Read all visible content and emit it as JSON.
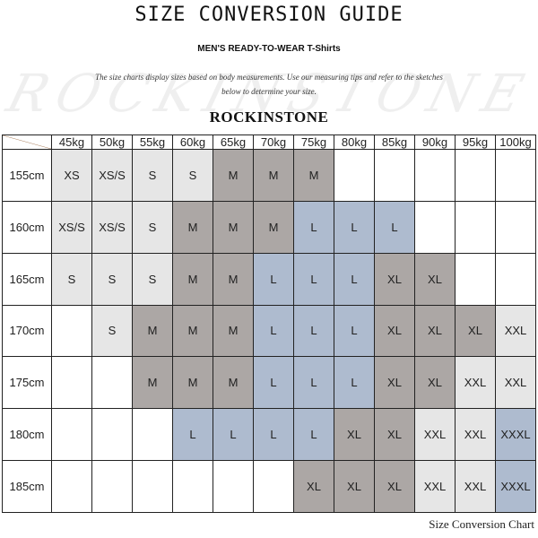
{
  "header": {
    "title": "SIZE CONVERSION GUIDE",
    "subtitle": "MEN'S READY-TO-WEAR T-Shirts",
    "description_line1": "The size charts display sizes based on body measurements.  Use our measuring tips and refer to the sketches",
    "description_line2": "below to determine your size.",
    "watermark": "ROCKINSTONE",
    "brand": "ROCKINSTONE"
  },
  "table": {
    "columns": [
      "45kg",
      "50kg",
      "55kg",
      "60kg",
      "65kg",
      "70kg",
      "75kg",
      "80kg",
      "85kg",
      "90kg",
      "95kg",
      "100kg"
    ],
    "rows": [
      {
        "height": "155cm",
        "sizes": [
          "XS",
          "XS/S",
          "S",
          "S",
          "M",
          "M",
          "M",
          "",
          "",
          "",
          "",
          ""
        ]
      },
      {
        "height": "160cm",
        "sizes": [
          "XS/S",
          "XS/S",
          "S",
          "M",
          "M",
          "M",
          "L",
          "L",
          "L",
          "",
          "",
          ""
        ]
      },
      {
        "height": "165cm",
        "sizes": [
          "S",
          "S",
          "S",
          "M",
          "M",
          "L",
          "L",
          "L",
          "XL",
          "XL",
          "",
          ""
        ]
      },
      {
        "height": "170cm",
        "sizes": [
          "",
          "S",
          "M",
          "M",
          "M",
          "L",
          "L",
          "L",
          "XL",
          "XL",
          "XL",
          "XXL"
        ]
      },
      {
        "height": "175cm",
        "sizes": [
          "",
          "",
          "M",
          "M",
          "M",
          "L",
          "L",
          "L",
          "XL",
          "XL",
          "XXL",
          "XXL"
        ]
      },
      {
        "height": "180cm",
        "sizes": [
          "",
          "",
          "",
          "L",
          "L",
          "L",
          "L",
          "XL",
          "XL",
          "XXL",
          "XXL",
          "XXXL"
        ]
      },
      {
        "height": "185cm",
        "sizes": [
          "",
          "",
          "",
          "",
          "",
          "",
          "XL",
          "XL",
          "XL",
          "XXL",
          "XXL",
          "XXXL"
        ]
      }
    ],
    "size_colors": {
      "XS": "#e6e6e6",
      "XS/S": "#e6e6e6",
      "S": "#e6e6e6",
      "M": "#aca7a5",
      "L": "#aebbcf",
      "XL": "#aca7a5",
      "XXL": "#e6e6e6",
      "XXXL": "#aebbcf"
    },
    "corner_line_color": "#a0704a"
  },
  "footer": {
    "caption": "Size Conversion Chart"
  }
}
